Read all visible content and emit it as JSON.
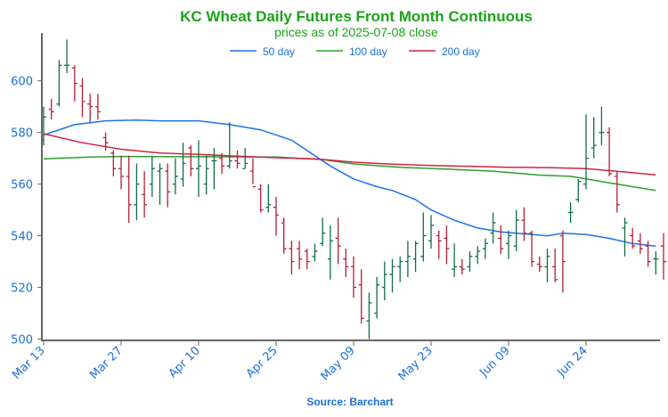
{
  "chart_data": {
    "type": "ohlc",
    "title": "KC Wheat Daily Futures Front Month Continuous",
    "subtitle": "prices as of 2025-07-08 close",
    "source": "Source: Barchart",
    "ylim": [
      500,
      618
    ],
    "y_ticks": [
      500,
      520,
      540,
      560,
      580,
      600
    ],
    "x_tick_labels": [
      "Mar 13",
      "Mar 27",
      "Apr 10",
      "Apr 25",
      "May 09",
      "May 23",
      "Jun 09",
      "Jun 24"
    ],
    "x_tick_positions": [
      0,
      10,
      20,
      30,
      40,
      50,
      60,
      70
    ],
    "grid": false,
    "legend_placement": "top-center",
    "colors": {
      "title": "#1aa31a",
      "axis_text": "#1a6fdc",
      "up": "#0f6e4a",
      "down": "#b21f35",
      "ma50": "#1a73e8",
      "ma100": "#2ca02c",
      "ma200": "#d62043",
      "axis": "#666666"
    },
    "series": [
      {
        "name": "50 day",
        "key": "ma50",
        "points": [
          [
            0,
            579
          ],
          [
            4,
            583
          ],
          [
            8,
            584.5
          ],
          [
            12,
            584.8
          ],
          [
            15,
            584.5
          ],
          [
            20,
            584.5
          ],
          [
            24,
            583
          ],
          [
            28,
            581
          ],
          [
            32,
            577
          ],
          [
            34,
            573
          ],
          [
            37,
            567
          ],
          [
            40,
            562
          ],
          [
            43,
            559
          ],
          [
            45,
            557.5
          ],
          [
            48,
            554
          ],
          [
            50,
            550
          ],
          [
            53,
            546
          ],
          [
            56,
            543
          ],
          [
            59,
            541.5
          ],
          [
            63,
            540.5
          ],
          [
            65,
            540
          ],
          [
            67,
            541
          ],
          [
            70,
            540.5
          ],
          [
            73,
            539
          ],
          [
            76,
            537
          ],
          [
            79,
            536
          ]
        ]
      },
      {
        "name": "100 day",
        "key": "ma100",
        "points": [
          [
            0,
            569.8
          ],
          [
            6,
            570.5
          ],
          [
            10,
            570.7
          ],
          [
            20,
            570.6
          ],
          [
            30,
            570.5
          ],
          [
            36,
            569.5
          ],
          [
            40,
            567.8
          ],
          [
            46,
            566.5
          ],
          [
            52,
            565.8
          ],
          [
            58,
            565
          ],
          [
            64,
            563.5
          ],
          [
            68,
            563
          ],
          [
            72,
            561
          ],
          [
            76,
            559
          ],
          [
            79,
            557.5
          ]
        ]
      },
      {
        "name": "200 day",
        "key": "ma200",
        "points": [
          [
            0,
            579.5
          ],
          [
            5,
            576
          ],
          [
            10,
            573.5
          ],
          [
            15,
            572
          ],
          [
            20,
            571.5
          ],
          [
            25,
            570.8
          ],
          [
            30,
            570.2
          ],
          [
            35,
            569.8
          ],
          [
            40,
            568.5
          ],
          [
            45,
            567.7
          ],
          [
            50,
            567.2
          ],
          [
            55,
            566.9
          ],
          [
            60,
            566.5
          ],
          [
            65,
            566.4
          ],
          [
            70,
            566
          ],
          [
            75,
            564.7
          ],
          [
            79,
            563.6
          ]
        ]
      }
    ],
    "ohlc": [
      [
        0,
        577,
        590,
        575,
        586
      ],
      [
        1,
        589,
        593,
        585,
        588
      ],
      [
        2,
        591,
        608,
        590,
        606
      ],
      [
        3,
        606,
        616,
        603,
        606
      ],
      [
        4,
        605,
        606,
        592,
        599
      ],
      [
        5,
        598,
        601,
        586,
        592
      ],
      [
        6,
        591,
        595,
        584,
        590
      ],
      [
        7,
        590,
        595,
        585,
        588
      ],
      [
        8,
        578,
        580,
        573,
        576
      ],
      [
        9,
        572,
        573,
        563,
        566
      ],
      [
        10,
        566,
        571,
        558,
        563
      ],
      [
        11,
        563,
        571,
        545,
        552
      ],
      [
        12,
        552,
        568,
        546,
        560
      ],
      [
        13,
        556,
        565,
        547,
        552
      ],
      [
        14,
        560,
        571,
        555,
        566
      ],
      [
        15,
        565,
        568,
        552,
        566
      ],
      [
        16,
        565,
        568,
        551,
        557
      ],
      [
        17,
        560,
        570,
        556,
        563
      ],
      [
        18,
        562,
        576,
        559,
        568
      ],
      [
        19,
        574,
        575,
        563,
        566
      ],
      [
        20,
        566,
        577,
        555,
        567
      ],
      [
        21,
        560,
        571,
        556,
        566
      ],
      [
        22,
        569,
        574,
        558,
        569
      ],
      [
        23,
        570,
        572,
        564,
        567
      ],
      [
        24,
        567,
        584,
        566,
        569
      ],
      [
        25,
        569,
        573,
        566,
        568
      ],
      [
        26,
        566,
        574,
        566,
        568
      ],
      [
        27,
        565,
        570,
        560,
        559
      ],
      [
        28,
        558,
        560,
        549,
        550
      ],
      [
        29,
        551,
        560,
        549,
        552
      ],
      [
        30,
        551,
        555,
        540,
        548
      ],
      [
        31,
        545,
        547,
        533,
        535
      ],
      [
        32,
        535,
        538,
        525,
        530
      ],
      [
        33,
        535,
        538,
        527,
        531
      ],
      [
        34,
        534,
        535,
        527,
        530
      ],
      [
        35,
        532,
        537,
        530,
        534
      ],
      [
        36,
        537,
        547,
        536,
        541
      ],
      [
        37,
        531,
        544,
        523,
        538
      ],
      [
        38,
        539,
        547,
        529,
        536
      ],
      [
        39,
        531,
        535,
        524,
        528
      ],
      [
        40,
        528,
        532,
        516,
        520
      ],
      [
        41,
        521,
        527,
        506,
        508
      ],
      [
        42,
        507,
        518,
        500,
        514
      ],
      [
        43,
        510,
        524,
        508,
        521
      ],
      [
        44,
        520,
        530,
        515,
        525
      ],
      [
        45,
        525,
        531,
        518,
        528
      ],
      [
        46,
        528,
        532,
        522,
        530
      ],
      [
        47,
        530,
        538,
        524,
        532
      ],
      [
        48,
        531,
        538,
        526,
        537
      ],
      [
        49,
        532,
        549,
        530,
        540
      ],
      [
        50,
        538,
        548,
        535,
        544
      ],
      [
        51,
        540,
        542,
        531,
        538
      ],
      [
        52,
        539,
        544,
        529,
        535
      ],
      [
        53,
        527,
        537,
        524,
        528
      ],
      [
        54,
        528,
        531,
        525,
        527
      ],
      [
        55,
        528,
        534,
        526,
        532
      ],
      [
        56,
        532,
        536,
        529,
        534
      ],
      [
        57,
        535,
        539,
        531,
        537
      ],
      [
        58,
        541,
        549,
        537,
        545
      ],
      [
        59,
        539,
        544,
        533,
        535
      ],
      [
        60,
        537,
        542,
        531,
        540
      ],
      [
        61,
        536,
        550,
        534,
        546
      ],
      [
        62,
        546,
        551,
        538,
        541
      ],
      [
        63,
        541,
        542,
        528,
        530
      ],
      [
        64,
        529,
        532,
        526,
        528
      ],
      [
        65,
        528,
        535,
        522,
        532
      ],
      [
        66,
        528,
        535,
        522,
        523
      ],
      [
        67,
        540,
        542,
        518,
        530
      ],
      [
        68,
        549,
        553,
        545,
        549
      ],
      [
        69,
        554,
        562,
        553,
        561
      ],
      [
        70,
        560,
        587,
        558,
        570
      ],
      [
        71,
        574,
        586,
        570,
        575
      ],
      [
        72,
        580,
        590,
        575,
        580
      ],
      [
        73,
        580,
        582,
        563,
        564
      ],
      [
        74,
        563,
        565,
        549,
        552
      ],
      [
        75,
        543,
        547,
        532,
        545
      ],
      [
        76,
        540,
        543,
        535,
        536
      ],
      [
        77,
        538,
        541,
        533,
        535
      ],
      [
        78,
        536,
        538,
        528,
        530
      ],
      [
        79,
        531,
        534,
        525,
        531
      ],
      [
        80,
        536,
        541,
        523,
        530
      ],
      [
        81,
        530,
        545,
        526,
        540
      ],
      [
        82,
        539,
        541,
        530,
        532
      ],
      [
        83,
        534,
        549,
        535,
        536
      ],
      [
        84,
        533,
        535,
        521,
        527
      ],
      [
        85,
        527,
        529,
        521,
        522
      ]
    ]
  }
}
